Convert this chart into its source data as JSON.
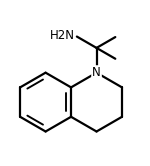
{
  "bg_color": "#ffffff",
  "line_color": "#000000",
  "line_width": 1.6,
  "text_color": "#000000",
  "N_label": "N",
  "NH2_label": "H2N",
  "font_size_N": 8.5,
  "font_size_NH2": 8.5,
  "figsize": [
    1.5,
    1.66
  ],
  "dpi": 100,
  "xlim": [
    -0.72,
    0.72
  ],
  "ylim": [
    -0.85,
    0.58
  ]
}
